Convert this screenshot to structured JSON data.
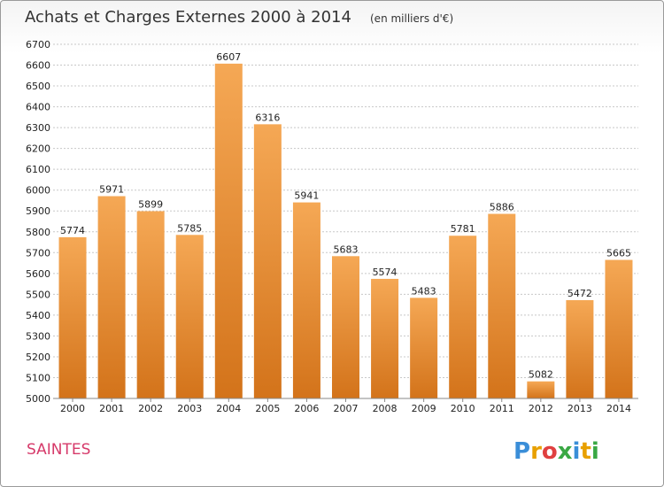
{
  "chart_data": {
    "type": "bar",
    "title": "Achats et Charges Externes 2000 à 2014",
    "subtitle": "(en milliers d'€)",
    "categories": [
      "2000",
      "2001",
      "2002",
      "2003",
      "2004",
      "2005",
      "2006",
      "2007",
      "2008",
      "2009",
      "2010",
      "2011",
      "2012",
      "2013",
      "2014"
    ],
    "values": [
      5774,
      5971,
      5899,
      5785,
      6607,
      6316,
      5941,
      5683,
      5574,
      5483,
      5781,
      5886,
      5082,
      5472,
      5665
    ],
    "ylim": [
      5000,
      6700
    ],
    "yticks": [
      "5000",
      "5100",
      "5200",
      "5300",
      "5400",
      "5500",
      "5600",
      "5700",
      "5800",
      "5900",
      "6000",
      "6100",
      "6200",
      "6300",
      "6400",
      "6500",
      "6600",
      "6700"
    ],
    "grid": true,
    "bar_color": "#f0a04a"
  },
  "footer": {
    "city": "SAINTES",
    "logo": [
      "P",
      "r",
      "o",
      "x",
      "i",
      "t",
      "i"
    ],
    "logo_colors": [
      "#3a8ed8",
      "#e8a000",
      "#e04040",
      "#3aa844",
      "#3a8ed8",
      "#e8a000",
      "#3aa844"
    ]
  }
}
